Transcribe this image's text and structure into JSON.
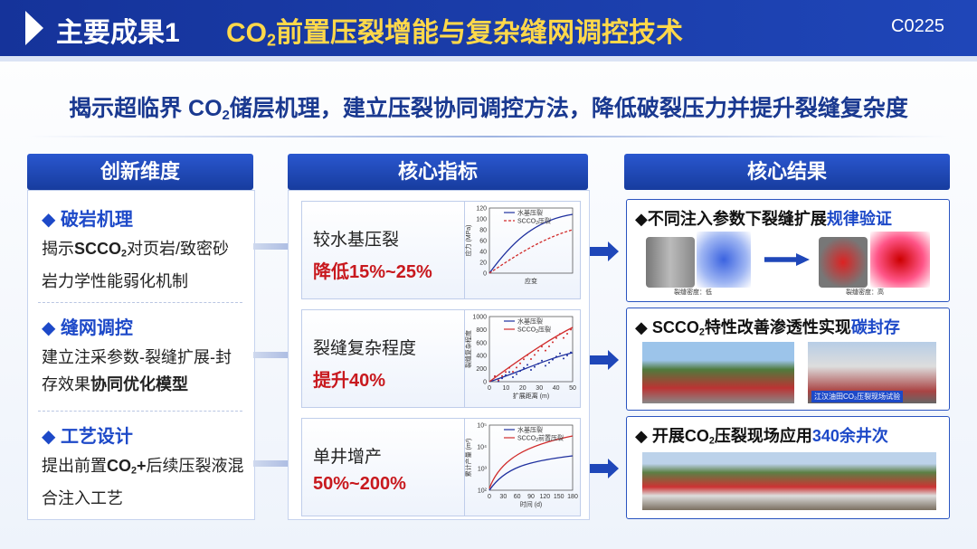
{
  "header": {
    "title": "主要成果1",
    "topic": [
      {
        "text": "CO"
      },
      {
        "text": "2",
        "style": "sub"
      },
      {
        "text": "前置压裂增能与复杂缝网调控技术"
      }
    ],
    "code": "C0225"
  },
  "subtitle": [
    {
      "text": "揭示超临界 CO"
    },
    {
      "text": "2",
      "style": "sub"
    },
    {
      "text": "储层机理，建立压裂协同调控方法，降低破裂压力并提升裂缝复杂度"
    }
  ],
  "innovation": {
    "title": "创新维度",
    "items": [
      {
        "heading": "◆ 破岩机理",
        "body": [
          {
            "text": "揭示"
          },
          {
            "text": "SCCO",
            "style": "bold"
          },
          {
            "text": "2",
            "style": "boldsub"
          },
          {
            "text": "对页岩/致密砂岩力学性能弱化机制"
          }
        ]
      },
      {
        "heading": "◆ 缝网调控",
        "body": [
          {
            "text": "建立注采参数-裂缝扩展-封存效果"
          },
          {
            "text": "协同优化模型",
            "style": "bold"
          }
        ]
      },
      {
        "heading": "◆ 工艺设计",
        "body": [
          {
            "text": "提出前置"
          },
          {
            "text": "CO",
            "style": "bold"
          },
          {
            "text": "2",
            "style": "boldsub"
          },
          {
            "text": "+",
            "style": "bold"
          },
          {
            "text": "后续压裂液混合注入工艺"
          }
        ]
      }
    ]
  },
  "indicators": {
    "title": "核心指标",
    "cards": [
      {
        "label": "较水基压裂",
        "value": "降低15%~25%",
        "chart": {
          "ylabel": "应力 (MPa)",
          "xlabel": "应变",
          "yticks": [
            "0",
            "20",
            "40",
            "60",
            "80",
            "100",
            "120"
          ],
          "xticks": [],
          "legend": [
            [
              {
                "text": "水基压裂"
              }
            ],
            [
              {
                "text": "SCCO"
              },
              {
                "text": "2",
                "style": "sub"
              },
              {
                "text": "压裂"
              }
            ]
          ]
        }
      },
      {
        "label": "裂缝复杂程度",
        "value": "提升40%",
        "chart": {
          "ylabel": "裂缝复杂程度",
          "xlabel": "扩展距离 (m)",
          "yticks": [
            "0",
            "200",
            "400",
            "600",
            "800",
            "1000"
          ],
          "xticks": [
            "0",
            "10",
            "20",
            "30",
            "40",
            "50"
          ],
          "legend": [
            [
              {
                "text": "水基压裂"
              }
            ],
            [
              {
                "text": "SCCO"
              },
              {
                "text": "2",
                "style": "sub"
              },
              {
                "text": "压裂"
              }
            ]
          ]
        }
      },
      {
        "label": "单井增产",
        "value": "50%~200%",
        "chart": {
          "ylabel": "累计产量 (m³)",
          "xlabel": "时间 (d)",
          "yticks": [
            "10²",
            "10³",
            "10⁴",
            "10⁵"
          ],
          "xticks": [
            "0",
            "30",
            "60",
            "90",
            "120",
            "150",
            "180"
          ],
          "legend": [
            [
              {
                "text": "水基压裂"
              }
            ],
            [
              {
                "text": "SCCO"
              },
              {
                "text": "2",
                "style": "sub"
              },
              {
                "text": "前置压裂"
              }
            ]
          ]
        }
      }
    ]
  },
  "results": {
    "title": "核心结果",
    "cards": [
      {
        "heading": [
          {
            "text": "◆不同注入参数下裂缝扩展"
          },
          {
            "text": "规律验证",
            "style": "blue"
          }
        ],
        "captions": [
          "裂缝密度：低",
          "裂缝密度：高"
        ]
      },
      {
        "heading": [
          {
            "text": "◆ SCCO"
          },
          {
            "text": "2",
            "style": "sub"
          },
          {
            "text": "特性改善渗透性实现"
          },
          {
            "text": "碳封存",
            "style": "blue"
          }
        ],
        "captions": [
          "江汉油田CO₂压裂现场试验"
        ]
      },
      {
        "heading": [
          {
            "text": "◆ 开展CO"
          },
          {
            "text": "2",
            "style": "sub"
          },
          {
            "text": "压裂现场应用"
          },
          {
            "text": "340余井次",
            "style": "blue"
          }
        ],
        "captions": []
      }
    ]
  }
}
